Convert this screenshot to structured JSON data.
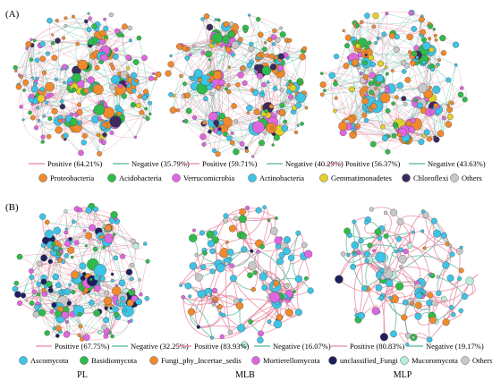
{
  "panels": [
    {
      "label": "(A)",
      "networks": [
        {
          "positive": "Positive (64.21%)",
          "negative": "Negative (35.79%)",
          "name": ""
        },
        {
          "positive": "Positive (59.71%)",
          "negative": "Negative (40.29%)",
          "name": ""
        },
        {
          "positive": "Positive (56.37%)",
          "negative": "Negative (43.63%)",
          "name": ""
        }
      ],
      "legend": [
        {
          "label": "Proteobacteria",
          "color": "#f08a2c"
        },
        {
          "label": "Acidobacteria",
          "color": "#2fbb4a"
        },
        {
          "label": "Verrucomicrobia",
          "color": "#e066e0"
        },
        {
          "label": "Actinobacteria",
          "color": "#3ec4e6"
        },
        {
          "label": "Gemmatimonadetes",
          "color": "#e3cf2a"
        },
        {
          "label": "Chloroflexi",
          "color": "#3b2a5c"
        },
        {
          "label": "Others",
          "color": "#c8c8c8"
        }
      ]
    },
    {
      "label": "(B)",
      "networks": [
        {
          "positive": "Positive (67.75%)",
          "negative": "Negative (32.25%)",
          "name": "PL"
        },
        {
          "positive": "Positive (83.93%)",
          "negative": "Negative (16.07%)",
          "name": "MLB"
        },
        {
          "positive": "Positive (80.83%)",
          "negative": "Negative (19.17%)",
          "name": "MLP"
        }
      ],
      "legend": [
        {
          "label": "Ascomycota",
          "color": "#3ec4e6"
        },
        {
          "label": "Basidiomycota",
          "color": "#2fbb4a"
        },
        {
          "label": "Fungi_phy_Incertae_sedis",
          "color": "#f08a2c"
        },
        {
          "label": "Mortierellomycota",
          "color": "#e066e0"
        },
        {
          "label": "unclassified_Fungi",
          "color": "#1e1f5e"
        },
        {
          "label": "Mucoromycota",
          "color": "#b5eedd"
        },
        {
          "label": "Others",
          "color": "#c8c8c8"
        }
      ]
    }
  ],
  "edge_colors": {
    "positive": "#e8849e",
    "negative": "#4fb89a"
  }
}
